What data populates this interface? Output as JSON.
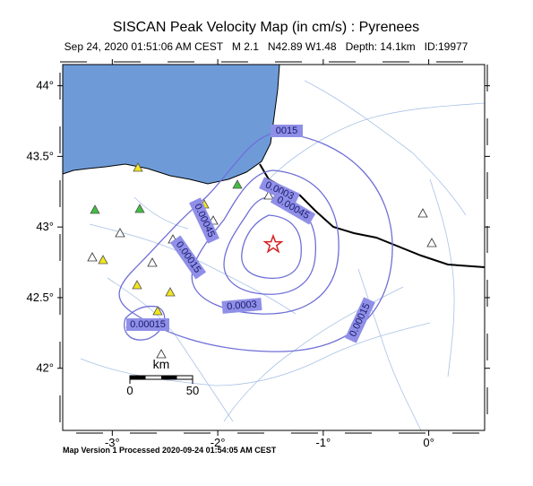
{
  "title": "SISCAN Peak Velocity Map (in cm/s) : Pyrenees",
  "subtitle": "Sep 24, 2020 01:51:06 AM CEST   M 2.1   N42.89 W1.48   Depth: 14.1km   ID:19977",
  "map": {
    "xlim": [
      -3.47,
      0.53
    ],
    "ylim": [
      41.56,
      44.15
    ],
    "xticks": [
      {
        "value": -3,
        "label": "-3°"
      },
      {
        "value": -2,
        "label": "-2°"
      },
      {
        "value": -1,
        "label": "-1°"
      },
      {
        "value": 0,
        "label": "0°"
      }
    ],
    "yticks": [
      {
        "value": 42,
        "label": "42°"
      },
      {
        "value": 42.5,
        "label": "42.5°"
      },
      {
        "value": 43,
        "label": "43°"
      },
      {
        "value": 43.5,
        "label": "43.5°"
      },
      {
        "value": 44,
        "label": "44°"
      }
    ]
  },
  "contour_labels": [
    "0015",
    "0.0003",
    "0.00045",
    "0.00045",
    "0.00015",
    "0.0003",
    "0.00015",
    "0.00015"
  ],
  "scale_bar": {
    "unit": "km",
    "labels": [
      "0",
      "50"
    ]
  },
  "footer": "Map Version 1 Processed 2020-09-24 01:54:05 AM CEST"
}
